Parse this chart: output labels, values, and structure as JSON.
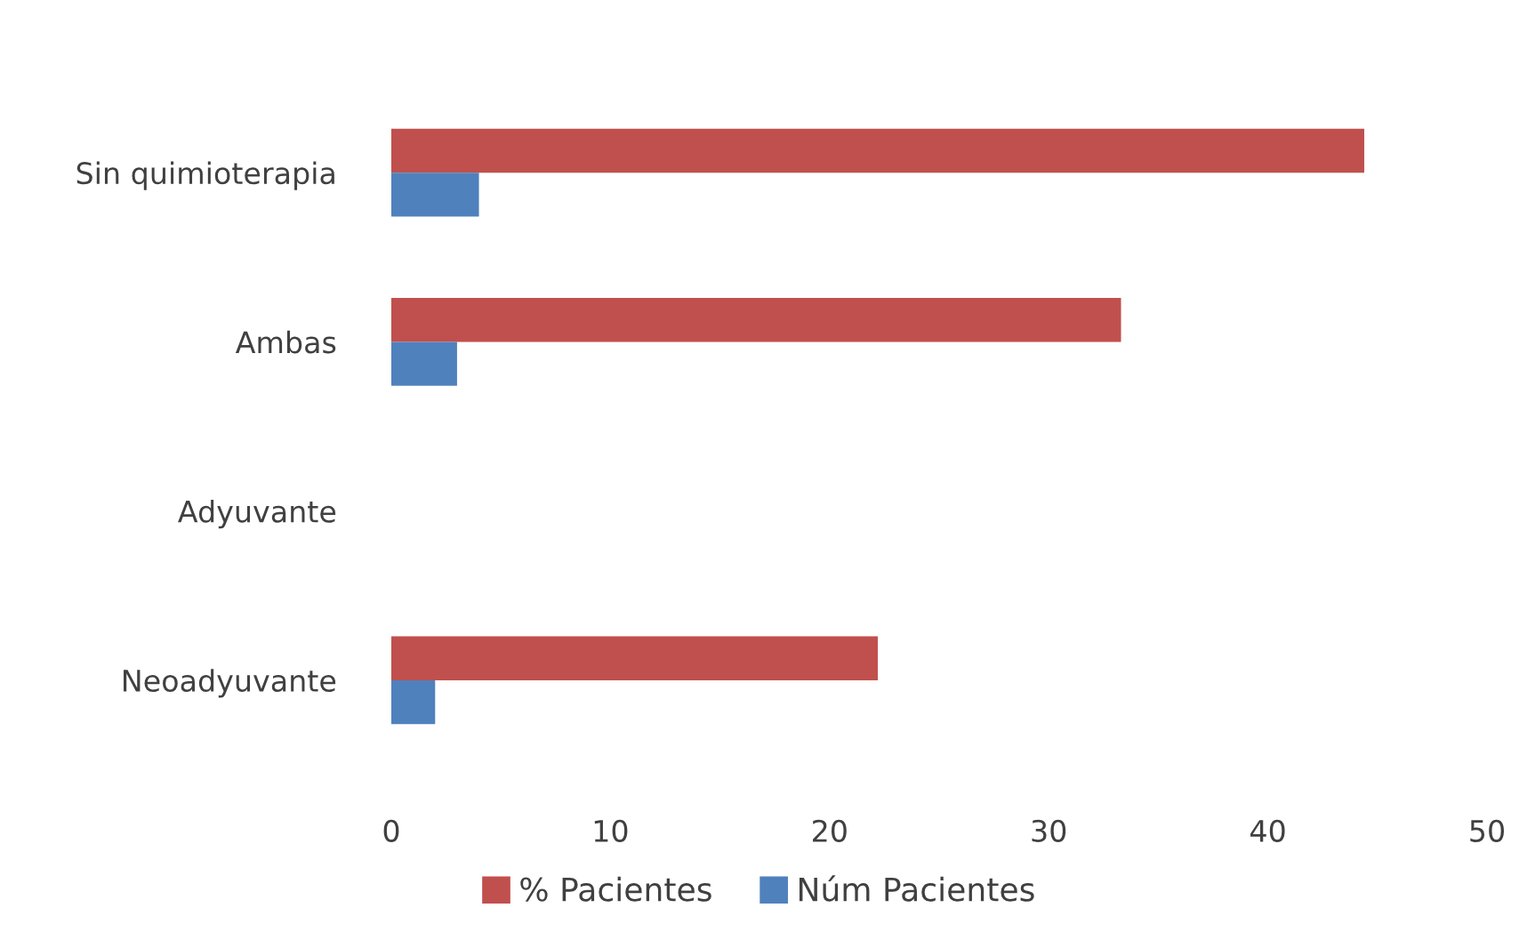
{
  "chart_data": {
    "type": "bar",
    "orientation": "horizontal",
    "categories": [
      "Sin quimioterapia",
      "Ambas",
      "Adyuvante",
      "Neoadyuvante"
    ],
    "series": [
      {
        "name": "% Pacientes",
        "color": "#c0504d",
        "values": [
          44.4,
          33.3,
          0,
          22.2
        ]
      },
      {
        "name": "Núm Pacientes",
        "color": "#4f81bd",
        "values": [
          4,
          3,
          0,
          2
        ]
      }
    ],
    "xlim": [
      0,
      50
    ],
    "xticks": [
      0,
      10,
      20,
      30,
      40,
      50
    ],
    "grid": false,
    "legend": "bottom"
  }
}
